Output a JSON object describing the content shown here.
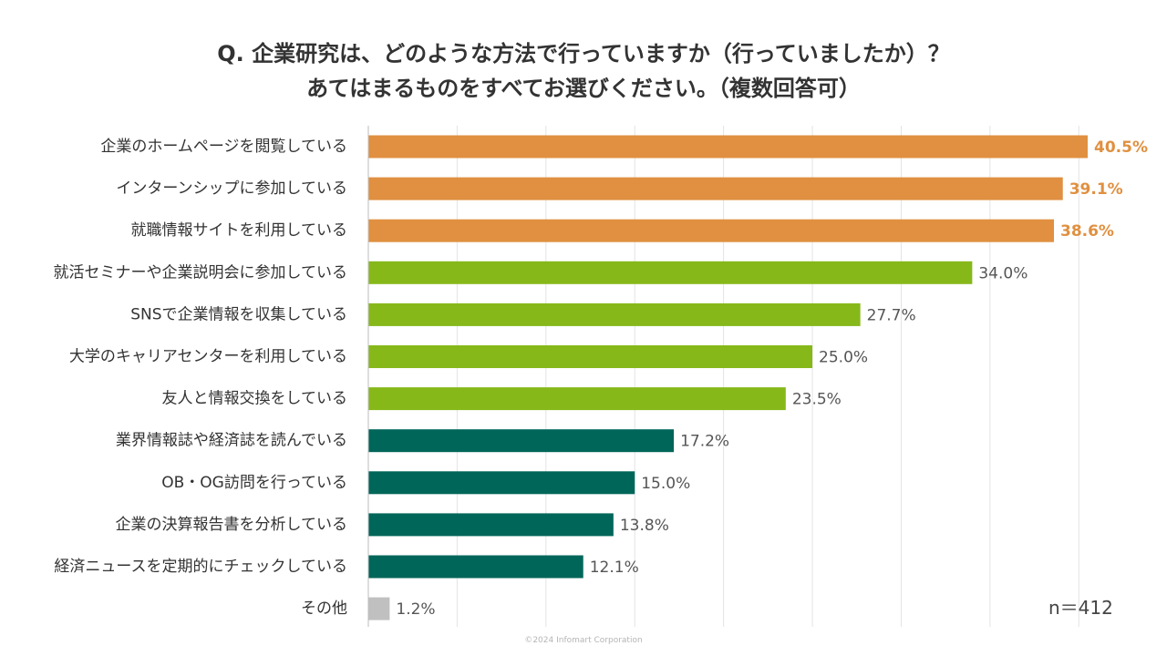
{
  "title": {
    "line1": "Q. 企業研究は、どのような方法で行っていますか（行っていましたか）？",
    "line2": "あてはまるものをすべてお選びください。（複数回答可）"
  },
  "sample_size": "n＝412",
  "copyright": "©2024 Infomart Corporation",
  "colors": {
    "orange": "#e09040",
    "green": "#86b81a",
    "teal": "#006659",
    "gray": "#c0c0c0"
  },
  "chart_data": {
    "type": "bar",
    "orientation": "horizontal",
    "categories": [
      "企業のホームページを閲覧している",
      "インターンシップに参加している",
      "就職情報サイトを利用している",
      "就活セミナーや企業説明会に参加している",
      "SNSで企業情報を収集している",
      "大学のキャリアセンターを利用している",
      "友人と情報交換をしている",
      "業界情報誌や経済誌を読んでいる",
      "OB・OG訪問を行っている",
      "企業の決算報告書を分析している",
      "経済ニュースを定期的にチェックしている",
      "その他"
    ],
    "values": [
      40.5,
      39.1,
      38.6,
      34.0,
      27.7,
      25.0,
      23.5,
      17.2,
      15.0,
      13.8,
      12.1,
      1.2
    ],
    "value_labels": [
      "40.5%",
      "39.1%",
      "38.6%",
      "34.0%",
      "27.7%",
      "25.0%",
      "23.5%",
      "17.2%",
      "15.0%",
      "13.8%",
      "12.1%",
      "1.2%"
    ],
    "color_groups": [
      "orange",
      "orange",
      "orange",
      "green",
      "green",
      "green",
      "green",
      "teal",
      "teal",
      "teal",
      "teal",
      "gray"
    ],
    "xlim": [
      0,
      45
    ],
    "grid": true,
    "unit": "%"
  }
}
